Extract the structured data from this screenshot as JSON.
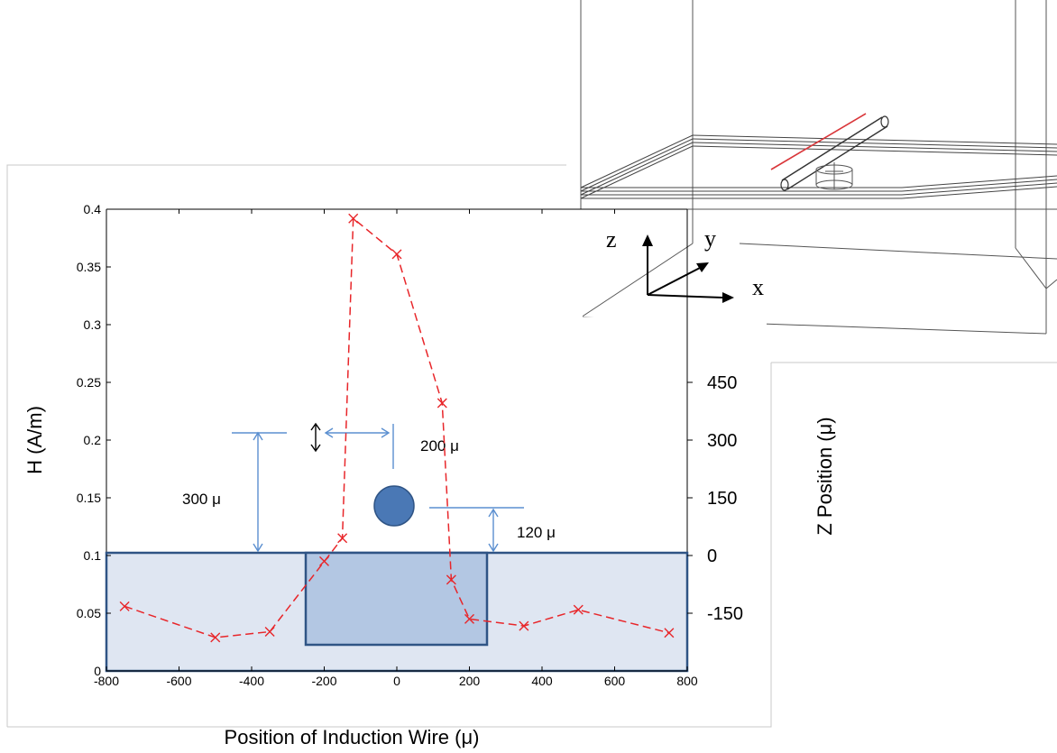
{
  "chart_data": {
    "type": "line",
    "xlabel": "Position of Induction Wire (μ)",
    "ylabel": "H (A/m)",
    "y2label": "Z Position (μ)",
    "xlim": [
      -800,
      800
    ],
    "ylim": [
      0,
      0.4
    ],
    "x_ticks": [
      "-800",
      "-600",
      "-400",
      "-200",
      "0",
      "200",
      "400",
      "600",
      "800"
    ],
    "y_ticks": [
      "0",
      "0.05",
      "0.1",
      "0.15",
      "0.2",
      "0.25",
      "0.3",
      "0.35",
      "0.4"
    ],
    "y2_ticks": [
      "450",
      "300",
      "150",
      "0",
      "-150"
    ],
    "series": [
      {
        "color": "#e8262a",
        "marker": "x",
        "line_style": "dashed",
        "x": [
          -750,
          -500,
          -350,
          -150,
          -120,
          0,
          125,
          150,
          200,
          350,
          500,
          750
        ],
        "y": [
          0.056,
          0.029,
          0.034,
          0.115,
          0.392,
          0.361,
          0.232,
          0.079,
          0.045,
          0.039,
          0.053,
          0.033
        ]
      }
    ],
    "extra_point": {
      "x": -200,
      "y": 0.095
    },
    "annotations": {
      "dim_300": "300 μ",
      "dim_200": "200 μ",
      "dim_120": "120 μ"
    },
    "grid": false
  },
  "inset": {
    "axis_z": "z",
    "axis_y": "y",
    "axis_x": "x"
  },
  "colors": {
    "box_fill_outer": "#dfe6f2",
    "box_fill_inner": "#b3c7e3",
    "box_stroke": "#2f5485",
    "circle_fill": "#4a78b5",
    "dimension_line": "#5b8fd0",
    "wire_red": "#d9363a"
  }
}
